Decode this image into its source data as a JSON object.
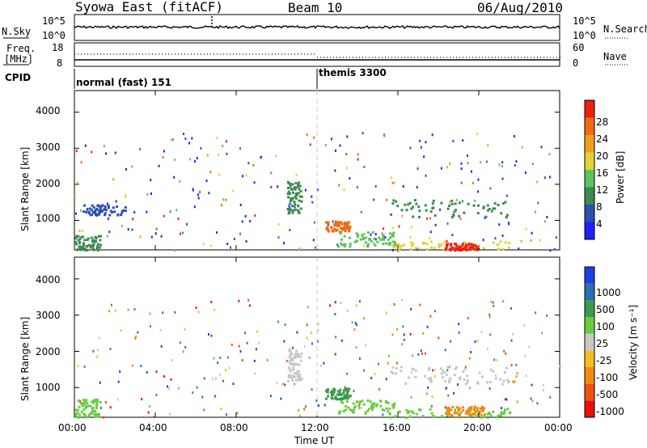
{
  "header": {
    "station": "Syowa East (fitACF)",
    "beam": "Beam 10",
    "date": "06/Aug/2010"
  },
  "top_panel": {
    "left_label": "N.Sky",
    "right_label": "N.Search",
    "left_ticks": [
      "10^5",
      "10^0"
    ],
    "right_ticks": [
      "10^5",
      "10^0"
    ]
  },
  "freq_panel": {
    "left_label_1": "Freq.",
    "left_label_2": "[MHz]",
    "right_label": "Nave",
    "left_ticks": [
      "18",
      "8"
    ],
    "right_ticks": [
      "60",
      "0"
    ]
  },
  "cpid_panel": {
    "label": "CPID",
    "mode_1": "normal (fast) 151",
    "mode_2": "themis 3300"
  },
  "x_axis": {
    "label": "Time UT",
    "ticks": [
      "00:00",
      "04:00",
      "08:00",
      "12:00",
      "16:00",
      "20:00",
      "00:00"
    ]
  },
  "power_panel": {
    "ylabel": "Slant Range [km]",
    "yticks": [
      "1000",
      "2000",
      "3000",
      "4000"
    ],
    "colorbar_label": "Power [dB]",
    "colorbar_ticks": [
      "4",
      "8",
      "12",
      "16",
      "20",
      "24",
      "28"
    ],
    "colorbar_colors": [
      "#1f1fff",
      "#2d4fb0",
      "#3b8a4f",
      "#5ec25c",
      "#e2d23a",
      "#f0a020",
      "#f06a10",
      "#ee2010"
    ]
  },
  "velocity_panel": {
    "ylabel": "Slant Range [km]",
    "yticks": [
      "1000",
      "2000",
      "3000",
      "4000"
    ],
    "colorbar_label": "Velocity [m s⁻¹]",
    "colorbar_ticks": [
      "1000",
      "500",
      "100",
      "25",
      "-25",
      "-100",
      "-500",
      "-1000"
    ],
    "colorbar_colors": [
      "#1f3fe0",
      "#2a6fb0",
      "#3a9a4f",
      "#6acc40",
      "#c8c8c8",
      "#f0c020",
      "#f08a10",
      "#f05010",
      "#e81010"
    ]
  },
  "chart_data": {
    "type": "heatmap",
    "title": "Syowa East (fitACF)",
    "xlabel": "Time UT",
    "ylabel": "Slant Range [km]",
    "xlim": [
      0,
      24
    ],
    "ylim": [
      180,
      4600
    ],
    "xticks": [
      "00:00",
      "04:00",
      "08:00",
      "12:00",
      "16:00",
      "20:00",
      "00:00"
    ],
    "yticks": [
      1000,
      2000,
      3000,
      4000
    ],
    "cpid_change_hour": 12.0,
    "power_patches": [
      {
        "t0": 0.0,
        "t1": 1.3,
        "r0": 200,
        "r1": 600,
        "v": 8
      },
      {
        "t0": 0.4,
        "t1": 2.5,
        "r0": 1150,
        "r1": 1450,
        "v": 6
      },
      {
        "t0": 10.5,
        "t1": 11.2,
        "r0": 1200,
        "r1": 2100,
        "v": 10
      },
      {
        "t0": 12.4,
        "t1": 13.6,
        "r0": 700,
        "r1": 1000,
        "v": 24
      },
      {
        "t0": 15.5,
        "t1": 21.5,
        "r0": 200,
        "r1": 450,
        "v": 18
      },
      {
        "t0": 18.3,
        "t1": 20.0,
        "r0": 200,
        "r1": 380,
        "v": 28
      },
      {
        "t0": 15.6,
        "t1": 21.4,
        "r0": 1100,
        "r1": 1600,
        "v": 8
      },
      {
        "t0": 13.0,
        "t1": 15.8,
        "r0": 300,
        "r1": 700,
        "v": 12
      }
    ],
    "velocity_patches": [
      {
        "t0": 0.0,
        "t1": 1.3,
        "r0": 200,
        "r1": 700,
        "v": 100
      },
      {
        "t0": 10.5,
        "t1": 11.2,
        "r0": 1200,
        "r1": 2100,
        "v": 25
      },
      {
        "t0": 12.4,
        "t1": 13.6,
        "r0": 700,
        "r1": 1000,
        "v": 500
      },
      {
        "t0": 15.5,
        "t1": 21.5,
        "r0": 200,
        "r1": 450,
        "v": 100
      },
      {
        "t0": 18.3,
        "t1": 20.3,
        "r0": 250,
        "r1": 500,
        "v": -100
      },
      {
        "t0": 15.6,
        "t1": 21.4,
        "r0": 1100,
        "r1": 1600,
        "v": 25
      },
      {
        "t0": 13.0,
        "t1": 15.8,
        "r0": 300,
        "r1": 700,
        "v": 100
      }
    ]
  }
}
